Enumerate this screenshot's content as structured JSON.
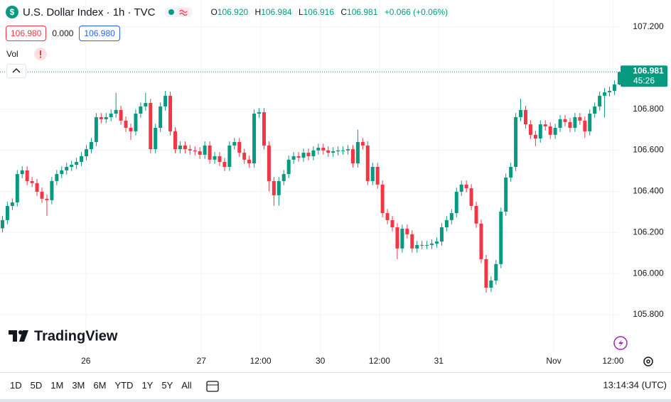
{
  "header": {
    "symbol_icon": "$",
    "symbol": "U.S. Dollar Index · 1h · TVC",
    "o_label": "O",
    "open": "106.920",
    "h_label": "H",
    "high": "106.984",
    "l_label": "L",
    "low": "106.916",
    "c_label": "C",
    "close": "106.981",
    "change": "+0.066 (+0.06%)",
    "bid": "106.980",
    "spread": "0.000",
    "ask": "106.980",
    "volume_label": "Vol"
  },
  "price_label": {
    "price": "106.981",
    "countdown": "45:26"
  },
  "logo": "TradingView",
  "timeframes": [
    "1D",
    "5D",
    "1M",
    "3M",
    "6M",
    "YTD",
    "1Y",
    "5Y",
    "All"
  ],
  "clock": "13:14:34 (UTC)",
  "chart_data": {
    "type": "candlestick",
    "up_color": "#089981",
    "down_color": "#f23645",
    "grid": true,
    "open": [
      106.22,
      106.26,
      106.329,
      106.346,
      106.484,
      106.502,
      106.45,
      106.44,
      106.398,
      106.364,
      106.357,
      106.45,
      106.484,
      106.502,
      106.519,
      106.529,
      106.543,
      106.571,
      106.605,
      106.64,
      106.761,
      106.751,
      106.761,
      106.778,
      106.796,
      106.744,
      106.709,
      106.692,
      106.778,
      106.813,
      106.83,
      106.605,
      106.709,
      106.813,
      106.865,
      106.692,
      106.605,
      106.623,
      106.605,
      106.599,
      106.595,
      106.578,
      106.623,
      106.554,
      106.571,
      106.543,
      106.519,
      106.623,
      106.64,
      106.588,
      106.554,
      106.536,
      106.778,
      106.785,
      106.623,
      106.45,
      106.381,
      106.45,
      106.484,
      106.554,
      106.571,
      106.564,
      106.588,
      106.571,
      106.599,
      106.612,
      106.599,
      106.588,
      106.595,
      106.599,
      106.599,
      106.605,
      106.536,
      106.64,
      106.623,
      106.45,
      106.519,
      106.433,
      106.294,
      106.26,
      106.225,
      106.122,
      106.218,
      106.191,
      106.122,
      106.139,
      106.139,
      106.139,
      106.146,
      106.156,
      106.225,
      106.26,
      106.294,
      106.398,
      106.433,
      106.415,
      106.329,
      106.243,
      106.07,
      105.931,
      105.966,
      106.046,
      106.301,
      106.467,
      106.519,
      106.761,
      106.796,
      106.726,
      106.675,
      106.657,
      106.726,
      106.716,
      106.675,
      106.709,
      106.751,
      106.737,
      106.709,
      106.761,
      106.744,
      106.692,
      106.778,
      106.813,
      106.865,
      106.882,
      106.889,
      106.92
    ],
    "high": [
      106.28,
      106.349,
      106.366,
      106.504,
      106.522,
      106.522,
      106.47,
      106.46,
      106.418,
      106.384,
      106.47,
      106.504,
      106.522,
      106.539,
      106.549,
      106.563,
      106.591,
      106.625,
      106.66,
      106.781,
      106.781,
      106.781,
      106.798,
      106.88,
      106.816,
      106.764,
      106.729,
      106.798,
      106.833,
      106.88,
      106.85,
      106.729,
      106.833,
      106.889,
      106.885,
      106.712,
      106.643,
      106.643,
      106.625,
      106.619,
      106.615,
      106.643,
      106.643,
      106.591,
      106.591,
      106.563,
      106.643,
      106.66,
      106.66,
      106.608,
      106.574,
      106.798,
      106.805,
      106.805,
      106.643,
      106.47,
      106.47,
      106.504,
      106.574,
      106.591,
      106.591,
      106.608,
      106.608,
      106.619,
      106.632,
      106.632,
      106.619,
      106.615,
      106.619,
      106.619,
      106.625,
      106.625,
      106.7,
      106.66,
      106.643,
      106.539,
      106.539,
      106.453,
      106.314,
      106.28,
      106.245,
      106.238,
      106.238,
      106.211,
      106.159,
      106.159,
      106.159,
      106.166,
      106.176,
      106.245,
      106.28,
      106.314,
      106.418,
      106.453,
      106.453,
      106.435,
      106.349,
      106.263,
      106.09,
      105.986,
      106.066,
      106.321,
      106.487,
      106.539,
      106.781,
      106.85,
      106.816,
      106.746,
      106.695,
      106.746,
      106.746,
      106.736,
      106.729,
      106.771,
      106.771,
      106.757,
      106.781,
      106.781,
      106.764,
      106.798,
      106.833,
      106.885,
      106.902,
      106.909,
      106.94,
      106.984
    ],
    "low": [
      106.2,
      106.24,
      106.309,
      106.326,
      106.464,
      106.43,
      106.42,
      106.378,
      106.344,
      106.28,
      106.337,
      106.43,
      106.464,
      106.482,
      106.499,
      106.509,
      106.523,
      106.551,
      106.585,
      106.62,
      106.731,
      106.731,
      106.741,
      106.758,
      106.724,
      106.689,
      106.65,
      106.672,
      106.758,
      106.793,
      106.585,
      106.585,
      106.689,
      106.793,
      106.672,
      106.585,
      106.585,
      106.585,
      106.579,
      106.575,
      106.558,
      106.558,
      106.534,
      106.534,
      106.523,
      106.499,
      106.499,
      106.603,
      106.568,
      106.534,
      106.516,
      106.516,
      106.758,
      106.603,
      106.4,
      106.33,
      106.33,
      106.43,
      106.464,
      106.534,
      106.544,
      106.544,
      106.551,
      106.551,
      106.579,
      106.579,
      106.568,
      106.568,
      106.575,
      106.579,
      106.579,
      106.516,
      106.516,
      106.603,
      106.43,
      106.43,
      106.413,
      106.274,
      106.24,
      106.205,
      106.07,
      106.102,
      106.171,
      106.102,
      106.102,
      106.119,
      106.119,
      106.119,
      106.126,
      106.136,
      106.205,
      106.24,
      106.274,
      106.378,
      106.395,
      106.309,
      106.223,
      106.05,
      105.907,
      105.911,
      105.946,
      106.026,
      106.281,
      106.447,
      106.499,
      106.741,
      106.706,
      106.655,
      106.62,
      106.637,
      106.696,
      106.655,
      106.655,
      106.689,
      106.717,
      106.689,
      106.689,
      106.724,
      106.66,
      106.672,
      106.758,
      106.793,
      106.76,
      106.862,
      106.869,
      106.916
    ],
    "close": [
      106.26,
      106.329,
      106.346,
      106.484,
      106.502,
      106.45,
      106.44,
      106.398,
      106.364,
      106.357,
      106.45,
      106.484,
      106.502,
      106.519,
      106.529,
      106.543,
      106.571,
      106.605,
      106.64,
      106.761,
      106.751,
      106.761,
      106.778,
      106.796,
      106.744,
      106.709,
      106.692,
      106.778,
      106.813,
      106.83,
      106.605,
      106.709,
      106.813,
      106.865,
      106.692,
      106.605,
      106.623,
      106.605,
      106.599,
      106.595,
      106.578,
      106.623,
      106.554,
      106.571,
      106.543,
      106.519,
      106.623,
      106.64,
      106.588,
      106.554,
      106.536,
      106.778,
      106.785,
      106.623,
      106.45,
      106.381,
      106.45,
      106.484,
      106.554,
      106.571,
      106.564,
      106.588,
      106.571,
      106.599,
      106.612,
      106.599,
      106.588,
      106.595,
      106.599,
      106.599,
      106.605,
      106.536,
      106.64,
      106.623,
      106.45,
      106.519,
      106.433,
      106.294,
      106.26,
      106.225,
      106.122,
      106.218,
      106.191,
      106.122,
      106.139,
      106.139,
      106.139,
      106.146,
      106.156,
      106.225,
      106.26,
      106.294,
      106.398,
      106.433,
      106.415,
      106.329,
      106.243,
      106.07,
      105.931,
      105.966,
      106.046,
      106.301,
      106.467,
      106.519,
      106.761,
      106.796,
      106.726,
      106.675,
      106.657,
      106.726,
      106.716,
      106.675,
      106.709,
      106.751,
      106.737,
      106.709,
      106.761,
      106.744,
      106.692,
      106.778,
      106.813,
      106.865,
      106.882,
      106.889,
      106.92,
      106.981
    ],
    "xlim": [
      -0.5,
      124.8
    ],
    "xticks": [
      {
        "value": 16.9,
        "label": "26"
      },
      {
        "value": 40.3,
        "label": "27"
      },
      {
        "value": 52.3,
        "label": "12:00"
      },
      {
        "value": 64.4,
        "label": "30"
      },
      {
        "value": 76.4,
        "label": "12:00"
      },
      {
        "value": 88.4,
        "label": "31"
      },
      {
        "value": 111.7,
        "label": "Nov"
      },
      {
        "value": 123.7,
        "label": "12:00"
      }
    ],
    "ylim": [
      105.61,
      107.331
    ],
    "yticks": [
      {
        "value": 105.8,
        "label": "105.800"
      },
      {
        "value": 106.0,
        "label": "106.000"
      },
      {
        "value": 106.2,
        "label": "106.200"
      },
      {
        "value": 106.4,
        "label": "106.400"
      },
      {
        "value": 106.6,
        "label": "106.600"
      },
      {
        "value": 106.8,
        "label": "106.800"
      },
      {
        "value": 107.2,
        "label": "107.200"
      }
    ]
  }
}
